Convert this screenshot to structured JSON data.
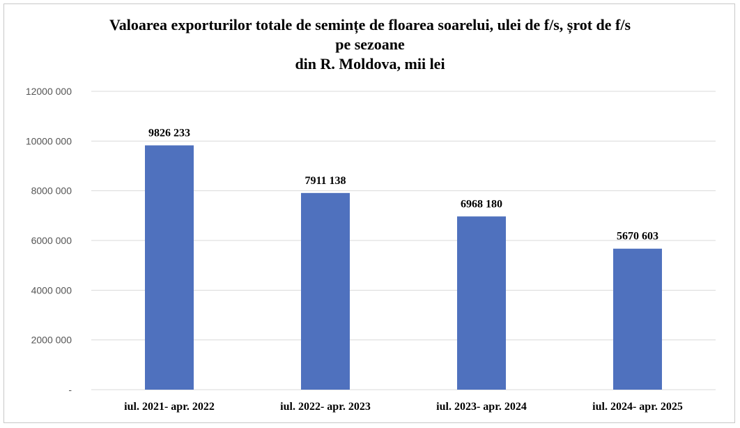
{
  "chart_data": {
    "type": "bar",
    "title_lines": [
      "Valoarea exporturilor totale de semințe de floarea soarelui, ulei de f/s, șrot de f/s",
      "pe sezoane",
      "din R. Moldova, mii lei"
    ],
    "categories": [
      "iul. 2021- apr. 2022",
      "iul. 2022- apr. 2023",
      "iul. 2023- apr. 2024",
      "iul. 2024- apr. 2025"
    ],
    "values": [
      9826233,
      7911138,
      6968180,
      5670603
    ],
    "data_labels": [
      "9826 233",
      "7911 138",
      "6968 180",
      "5670 603"
    ],
    "ylim": [
      0,
      12000000
    ],
    "yticks": [
      0,
      2000000,
      4000000,
      6000000,
      8000000,
      10000000,
      12000000
    ],
    "ytick_labels": [
      "-",
      "2000 000",
      "4000 000",
      "6000 000",
      "8000 000",
      "10000 000",
      "12000 000"
    ],
    "bar_color": "#4f71be",
    "grid": true,
    "legend": "none"
  }
}
